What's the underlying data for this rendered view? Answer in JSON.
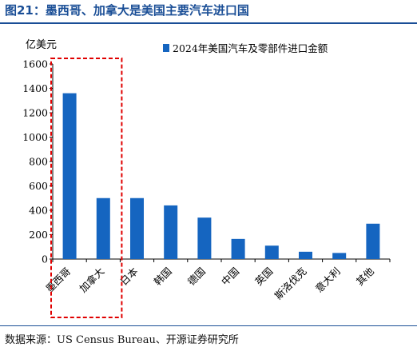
{
  "figure": {
    "title": "图21：墨西哥、加拿大是美国主要汽车进口国",
    "source": "数据来源：US Census Bureau、开源证券研究所"
  },
  "colors": {
    "bar": "#1565c0",
    "title": "#1a4e96",
    "highlight_box": "#e00000",
    "axis": "#000000"
  },
  "chart_data": {
    "type": "bar",
    "ylabel": "亿美元",
    "ylim": [
      0,
      1600
    ],
    "yticks": [
      0,
      200,
      400,
      600,
      800,
      1000,
      1200,
      1400,
      1600
    ],
    "categories": [
      "墨西哥",
      "加拿大",
      "日本",
      "韩国",
      "德国",
      "中国",
      "英国",
      "斯洛伐克",
      "意大利",
      "其他"
    ],
    "series": [
      {
        "name": "2024年美国汽车及零部件进口金额",
        "values": [
          1360,
          500,
          500,
          440,
          340,
          165,
          110,
          60,
          50,
          290
        ]
      }
    ],
    "legend_position": "top-right",
    "grid": false,
    "highlighted_categories": [
      "墨西哥",
      "加拿大"
    ]
  }
}
